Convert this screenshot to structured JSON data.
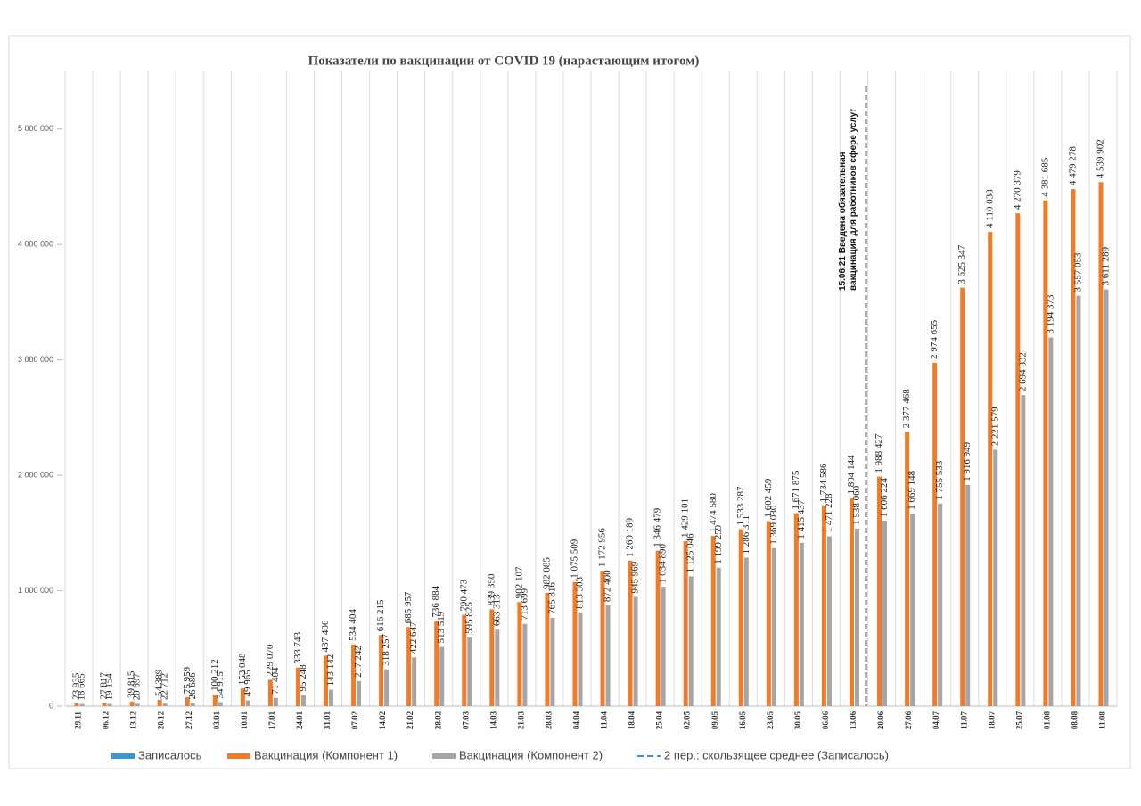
{
  "chart_data": {
    "type": "bar",
    "title": "Показатели по вакцинации от COVID 19 (нарастающим итогом)",
    "categories": [
      "29.11",
      "06.12",
      "13.12",
      "20.12",
      "27.12",
      "03.01",
      "10.01",
      "17.01",
      "24.01",
      "31.01",
      "07.02",
      "14.02",
      "21.02",
      "28.02",
      "07.03",
      "14.03",
      "21.03",
      "28.03",
      "04.04",
      "11.04",
      "18.04",
      "25.04",
      "02.05",
      "09.05",
      "16.05",
      "23.05",
      "30.05",
      "06.06",
      "13.06",
      "20.06",
      "27.06",
      "04.07",
      "11.07",
      "18.07",
      "25.07",
      "01.08",
      "08.08",
      "11.08"
    ],
    "series": [
      {
        "name": "Записалось",
        "color": "#2e9bd6",
        "values": [
          null,
          null,
          null,
          null,
          null,
          null,
          null,
          null,
          null,
          null,
          null,
          null,
          null,
          null,
          null,
          null,
          null,
          null,
          null,
          null,
          null,
          null,
          null,
          null,
          null,
          null,
          null,
          null,
          null,
          null,
          null,
          null,
          null,
          null,
          null,
          null,
          null,
          null
        ]
      },
      {
        "name": "Вакцинация (Компонент 1)",
        "color": "#f07c2a",
        "values": [
          23935,
          27817,
          39815,
          54389,
          75959,
          100212,
          153048,
          229070,
          333743,
          437406,
          534404,
          616215,
          685957,
          736884,
          790473,
          839350,
          902107,
          982085,
          1075509,
          1172956,
          1260189,
          1346479,
          1429101,
          1474580,
          1533287,
          1602459,
          1671875,
          1734586,
          1804144,
          1988427,
          2377468,
          2974655,
          3625347,
          4110038,
          4270379,
          4381685,
          4479278,
          4539902
        ],
        "value_labels": [
          "23 935",
          "27 817",
          "39 815",
          "54 389",
          "75 959",
          "100 212",
          "153 048",
          "229 070",
          "333 743",
          "437 406",
          "534 404",
          "616 215",
          "685 957",
          "736 884",
          "790 473",
          "839 350",
          "902 107",
          "982 085",
          "1 075 509",
          "1 172 956",
          "1 260 189",
          "1 346 479",
          "1 429 101",
          "1 474 580",
          "1 533 287",
          "1 602 459",
          "1 671 875",
          "1 734 586",
          "1 804 144",
          "1 988 427",
          "2 377 468",
          "2 974 655",
          "3 625 347",
          "4 110 038",
          "4 270 379",
          "4 381 685",
          "4 479 278",
          "4 539 902"
        ]
      },
      {
        "name": "Вакцинация (Компонент 2)",
        "color": "#a5a5a5",
        "values": [
          18665,
          19154,
          20697,
          22712,
          26686,
          34915,
          49965,
          71404,
          95248,
          143142,
          217242,
          318257,
          422647,
          513519,
          595825,
          663313,
          713699,
          765816,
          813303,
          872400,
          945969,
          1034890,
          1125046,
          1199259,
          1286311,
          1369080,
          1415437,
          1471228,
          1538060,
          1606224,
          1669148,
          1755533,
          1916949,
          2221579,
          2694832,
          3194373,
          3557053,
          3611289
        ],
        "value_labels": [
          "18 665",
          "19 154",
          "20 697",
          "22 712",
          "26 686",
          "34 915",
          "49 965",
          "71 404",
          "95 248",
          "143 142",
          "217 242",
          "318 257",
          "422 647",
          "513 519",
          "595 825",
          "663 313",
          "713 699",
          "765 816",
          "813 303",
          "872 400",
          "945 969",
          "1 034 890",
          "1 125 046",
          "1 199 259",
          "1 286 311",
          "1 369 080",
          "1 415 437",
          "1 471 228",
          "1 538 060",
          "1 606 224",
          "1 669 148",
          "1 755 533",
          "1 916 949",
          "2 221 579",
          "2 694 832",
          "3 194 373",
          "3 557 053",
          "3 611 289"
        ]
      },
      {
        "name": "2 пер.: скользящее среднее (Записалось)",
        "color": "#2e9bd6",
        "line_style": "dashed",
        "values": [
          null,
          null,
          null,
          null,
          null,
          null,
          null,
          null,
          null,
          null,
          null,
          null,
          null,
          null,
          null,
          null,
          null,
          null,
          null,
          null,
          null,
          null,
          null,
          null,
          null,
          null,
          null,
          null,
          null,
          null,
          null,
          null,
          null,
          null,
          null,
          null,
          null,
          null
        ]
      }
    ],
    "ylim": [
      0,
      5500000
    ],
    "yticks": [
      0,
      {
        "value": 1000000,
        "label": "1 000 000"
      },
      {
        "value": 2000000,
        "label": "2 000 000"
      },
      {
        "value": 3000000,
        "label": "3 000 000"
      },
      {
        "value": 4000000,
        "label": "4 000 000"
      },
      {
        "value": 5000000,
        "label": "5 000 000"
      }
    ],
    "grid": true,
    "legend": "bottom",
    "annotation": {
      "lines": [
        "15.06.21 Введена обязательная",
        "вакцинация для работников сфере услуг"
      ]
    }
  }
}
